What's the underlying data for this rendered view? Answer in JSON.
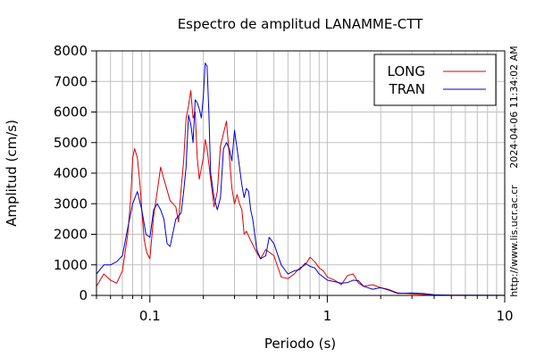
{
  "chart_data": {
    "type": "line",
    "title": "Espectro de amplitud LANAMME-CTT",
    "xlabel": "Periodo (s)",
    "ylabel": "Amplitud (cm/s)",
    "xscale": "log",
    "xlim": [
      0.05,
      10
    ],
    "ylim": [
      0,
      8000
    ],
    "x_ticks": [
      {
        "value": 0.1,
        "label": "0.1"
      },
      {
        "value": 1,
        "label": "1"
      },
      {
        "value": 10,
        "label": "10"
      }
    ],
    "y_ticks": [
      0,
      1000,
      2000,
      3000,
      4000,
      5000,
      6000,
      7000,
      8000
    ],
    "grid": true,
    "legend_position": "top-right",
    "side_texts": [
      "2024-04-06 11:34:02 AM",
      "http://www.lis.ucr.ac.cr"
    ],
    "colors": {
      "LONG": "#dd0000",
      "TRAN": "#0000cc",
      "grid": "#c0c0c0"
    },
    "series": [
      {
        "name": "LONG",
        "color": "#dd0000",
        "points": [
          [
            0.05,
            300
          ],
          [
            0.055,
            700
          ],
          [
            0.06,
            500
          ],
          [
            0.065,
            400
          ],
          [
            0.07,
            800
          ],
          [
            0.075,
            2000
          ],
          [
            0.078,
            3200
          ],
          [
            0.08,
            4500
          ],
          [
            0.082,
            4800
          ],
          [
            0.085,
            4500
          ],
          [
            0.088,
            3600
          ],
          [
            0.09,
            2800
          ],
          [
            0.093,
            1800
          ],
          [
            0.096,
            1400
          ],
          [
            0.1,
            1200
          ],
          [
            0.105,
            2600
          ],
          [
            0.11,
            3400
          ],
          [
            0.115,
            4200
          ],
          [
            0.12,
            3800
          ],
          [
            0.13,
            3100
          ],
          [
            0.14,
            2900
          ],
          [
            0.145,
            2400
          ],
          [
            0.15,
            3500
          ],
          [
            0.155,
            4400
          ],
          [
            0.16,
            5800
          ],
          [
            0.165,
            6200
          ],
          [
            0.17,
            6700
          ],
          [
            0.175,
            5800
          ],
          [
            0.18,
            6000
          ],
          [
            0.185,
            4500
          ],
          [
            0.19,
            3800
          ],
          [
            0.2,
            4500
          ],
          [
            0.205,
            5100
          ],
          [
            0.21,
            4800
          ],
          [
            0.22,
            3800
          ],
          [
            0.23,
            2900
          ],
          [
            0.24,
            3400
          ],
          [
            0.25,
            4900
          ],
          [
            0.26,
            5300
          ],
          [
            0.27,
            5700
          ],
          [
            0.28,
            4600
          ],
          [
            0.29,
            3500
          ],
          [
            0.3,
            3000
          ],
          [
            0.31,
            3300
          ],
          [
            0.32,
            3000
          ],
          [
            0.33,
            2800
          ],
          [
            0.34,
            2000
          ],
          [
            0.35,
            2100
          ],
          [
            0.37,
            1800
          ],
          [
            0.4,
            1400
          ],
          [
            0.42,
            1200
          ],
          [
            0.45,
            1500
          ],
          [
            0.5,
            1300
          ],
          [
            0.55,
            600
          ],
          [
            0.6,
            550
          ],
          [
            0.65,
            700
          ],
          [
            0.7,
            900
          ],
          [
            0.75,
            1000
          ],
          [
            0.8,
            1250
          ],
          [
            0.85,
            1100
          ],
          [
            0.9,
            900
          ],
          [
            0.95,
            800
          ],
          [
            1.0,
            600
          ],
          [
            1.1,
            500
          ],
          [
            1.2,
            350
          ],
          [
            1.3,
            650
          ],
          [
            1.4,
            700
          ],
          [
            1.5,
            400
          ],
          [
            1.6,
            300
          ],
          [
            1.8,
            350
          ],
          [
            2.0,
            250
          ],
          [
            2.2,
            200
          ],
          [
            2.5,
            80
          ],
          [
            3.0,
            50
          ],
          [
            3.5,
            30
          ],
          [
            4.0,
            10
          ],
          [
            5.0,
            5
          ],
          [
            7.0,
            3
          ],
          [
            10.0,
            2
          ]
        ]
      },
      {
        "name": "TRAN",
        "color": "#0000cc",
        "points": [
          [
            0.05,
            700
          ],
          [
            0.055,
            1000
          ],
          [
            0.06,
            1000
          ],
          [
            0.065,
            1100
          ],
          [
            0.07,
            1300
          ],
          [
            0.075,
            2200
          ],
          [
            0.08,
            3000
          ],
          [
            0.085,
            3400
          ],
          [
            0.09,
            2800
          ],
          [
            0.095,
            2000
          ],
          [
            0.1,
            1900
          ],
          [
            0.105,
            2800
          ],
          [
            0.11,
            3000
          ],
          [
            0.115,
            2800
          ],
          [
            0.12,
            2500
          ],
          [
            0.125,
            1700
          ],
          [
            0.13,
            1600
          ],
          [
            0.14,
            2500
          ],
          [
            0.15,
            2700
          ],
          [
            0.155,
            3400
          ],
          [
            0.16,
            4200
          ],
          [
            0.165,
            5900
          ],
          [
            0.17,
            5600
          ],
          [
            0.175,
            5000
          ],
          [
            0.18,
            6400
          ],
          [
            0.185,
            6300
          ],
          [
            0.19,
            6100
          ],
          [
            0.195,
            5800
          ],
          [
            0.2,
            6500
          ],
          [
            0.205,
            7600
          ],
          [
            0.21,
            7500
          ],
          [
            0.215,
            6000
          ],
          [
            0.22,
            4000
          ],
          [
            0.23,
            3200
          ],
          [
            0.24,
            2800
          ],
          [
            0.25,
            3200
          ],
          [
            0.26,
            4800
          ],
          [
            0.27,
            5000
          ],
          [
            0.28,
            4800
          ],
          [
            0.29,
            4400
          ],
          [
            0.3,
            5400
          ],
          [
            0.31,
            4800
          ],
          [
            0.32,
            4200
          ],
          [
            0.33,
            3600
          ],
          [
            0.34,
            3200
          ],
          [
            0.35,
            3500
          ],
          [
            0.36,
            3400
          ],
          [
            0.37,
            2800
          ],
          [
            0.38,
            2500
          ],
          [
            0.4,
            1500
          ],
          [
            0.42,
            1200
          ],
          [
            0.45,
            1300
          ],
          [
            0.47,
            1900
          ],
          [
            0.5,
            1700
          ],
          [
            0.55,
            1000
          ],
          [
            0.6,
            700
          ],
          [
            0.65,
            800
          ],
          [
            0.7,
            850
          ],
          [
            0.75,
            1050
          ],
          [
            0.8,
            950
          ],
          [
            0.85,
            900
          ],
          [
            0.9,
            700
          ],
          [
            0.95,
            600
          ],
          [
            1.0,
            500
          ],
          [
            1.1,
            450
          ],
          [
            1.2,
            400
          ],
          [
            1.3,
            420
          ],
          [
            1.4,
            500
          ],
          [
            1.5,
            480
          ],
          [
            1.6,
            300
          ],
          [
            1.8,
            200
          ],
          [
            2.0,
            250
          ],
          [
            2.2,
            180
          ],
          [
            2.5,
            60
          ],
          [
            3.0,
            80
          ],
          [
            3.5,
            60
          ],
          [
            4.0,
            20
          ],
          [
            5.0,
            8
          ],
          [
            7.0,
            5
          ],
          [
            10.0,
            3
          ]
        ]
      }
    ]
  }
}
